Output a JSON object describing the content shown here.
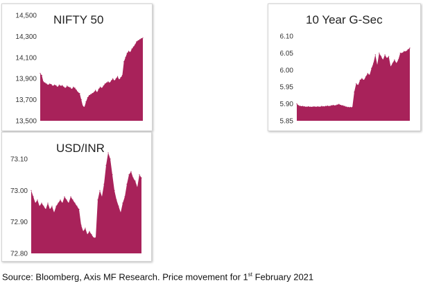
{
  "caption": {
    "before": "Source: Bloomberg, Axis MF Research. Price movement for 1",
    "sup": "st",
    "after": " February 2021"
  },
  "colors": {
    "fill": "#A8225A",
    "axis_text": "#333333"
  },
  "chart_data": [
    {
      "type": "area",
      "title": "NIFTY 50",
      "xlabel": "",
      "ylabel": "",
      "ylim": [
        13500,
        14500
      ],
      "yticks": [
        13500,
        13700,
        13900,
        14100,
        14300,
        14500
      ],
      "ytick_labels": [
        "13,500",
        "13,700",
        "13,900",
        "14,100",
        "14,300",
        "14,500"
      ],
      "grid": false,
      "legend": "none",
      "values": [
        13950,
        13930,
        13870,
        13860,
        13850,
        13840,
        13850,
        13845,
        13830,
        13840,
        13835,
        13820,
        13840,
        13830,
        13835,
        13820,
        13810,
        13830,
        13820,
        13815,
        13800,
        13820,
        13810,
        13790,
        13770,
        13760,
        13700,
        13640,
        13630,
        13680,
        13720,
        13740,
        13750,
        13760,
        13770,
        13790,
        13770,
        13800,
        13820,
        13810,
        13830,
        13850,
        13860,
        13870,
        13860,
        13880,
        13900,
        13880,
        13900,
        13920,
        13890,
        13910,
        13930,
        14060,
        14100,
        14140,
        14160,
        14150,
        14180,
        14200,
        14220,
        14250,
        14260,
        14270,
        14280,
        14285
      ]
    },
    {
      "type": "area",
      "title": "10 Year G-Sec",
      "xlabel": "",
      "ylabel": "",
      "ylim": [
        5.85,
        6.1
      ],
      "yticks": [
        5.85,
        5.9,
        5.95,
        6.0,
        6.05,
        6.1
      ],
      "ytick_labels": [
        "5.85",
        "5.90",
        "5.95",
        "6.00",
        "6.05",
        "6.10"
      ],
      "grid": false,
      "legend": "none",
      "values": [
        5.9,
        5.895,
        5.893,
        5.893,
        5.892,
        5.891,
        5.892,
        5.891,
        5.891,
        5.892,
        5.891,
        5.892,
        5.891,
        5.893,
        5.892,
        5.893,
        5.894,
        5.893,
        5.895,
        5.896,
        5.895,
        5.897,
        5.899,
        5.896,
        5.895,
        5.893,
        5.891,
        5.89,
        5.89,
        5.89,
        5.935,
        5.96,
        5.955,
        5.97,
        5.975,
        5.97,
        5.98,
        5.99,
        5.985,
        6.005,
        6.02,
        6.045,
        6.015,
        6.05,
        6.04,
        6.03,
        6.045,
        6.035,
        6.04,
        6.01,
        6.02,
        6.03,
        6.02,
        6.03,
        6.05,
        6.05,
        6.055,
        6.055,
        6.06,
        6.065
      ]
    },
    {
      "type": "area",
      "title": "USD/INR",
      "xlabel": "",
      "ylabel": "",
      "ylim": [
        72.8,
        73.1
      ],
      "yticks": [
        72.8,
        72.9,
        73.0,
        73.1
      ],
      "ytick_labels": [
        "72.80",
        "72.90",
        "73.00",
        "73.10"
      ],
      "grid": false,
      "legend": "none",
      "values": [
        73.0,
        72.98,
        72.96,
        72.97,
        72.95,
        72.96,
        72.95,
        72.94,
        72.96,
        72.94,
        72.95,
        72.93,
        72.95,
        72.96,
        72.97,
        72.96,
        72.98,
        72.97,
        72.96,
        72.98,
        72.97,
        72.96,
        72.95,
        72.94,
        72.89,
        72.87,
        72.88,
        72.86,
        72.87,
        72.86,
        72.85,
        72.85,
        72.97,
        73.0,
        72.98,
        73.02,
        73.08,
        73.12,
        73.1,
        73.05,
        73.0,
        72.97,
        72.95,
        72.93,
        72.96,
        72.98,
        73.02,
        73.05,
        73.06,
        73.04,
        73.03,
        73.01,
        73.05,
        73.04
      ]
    }
  ]
}
